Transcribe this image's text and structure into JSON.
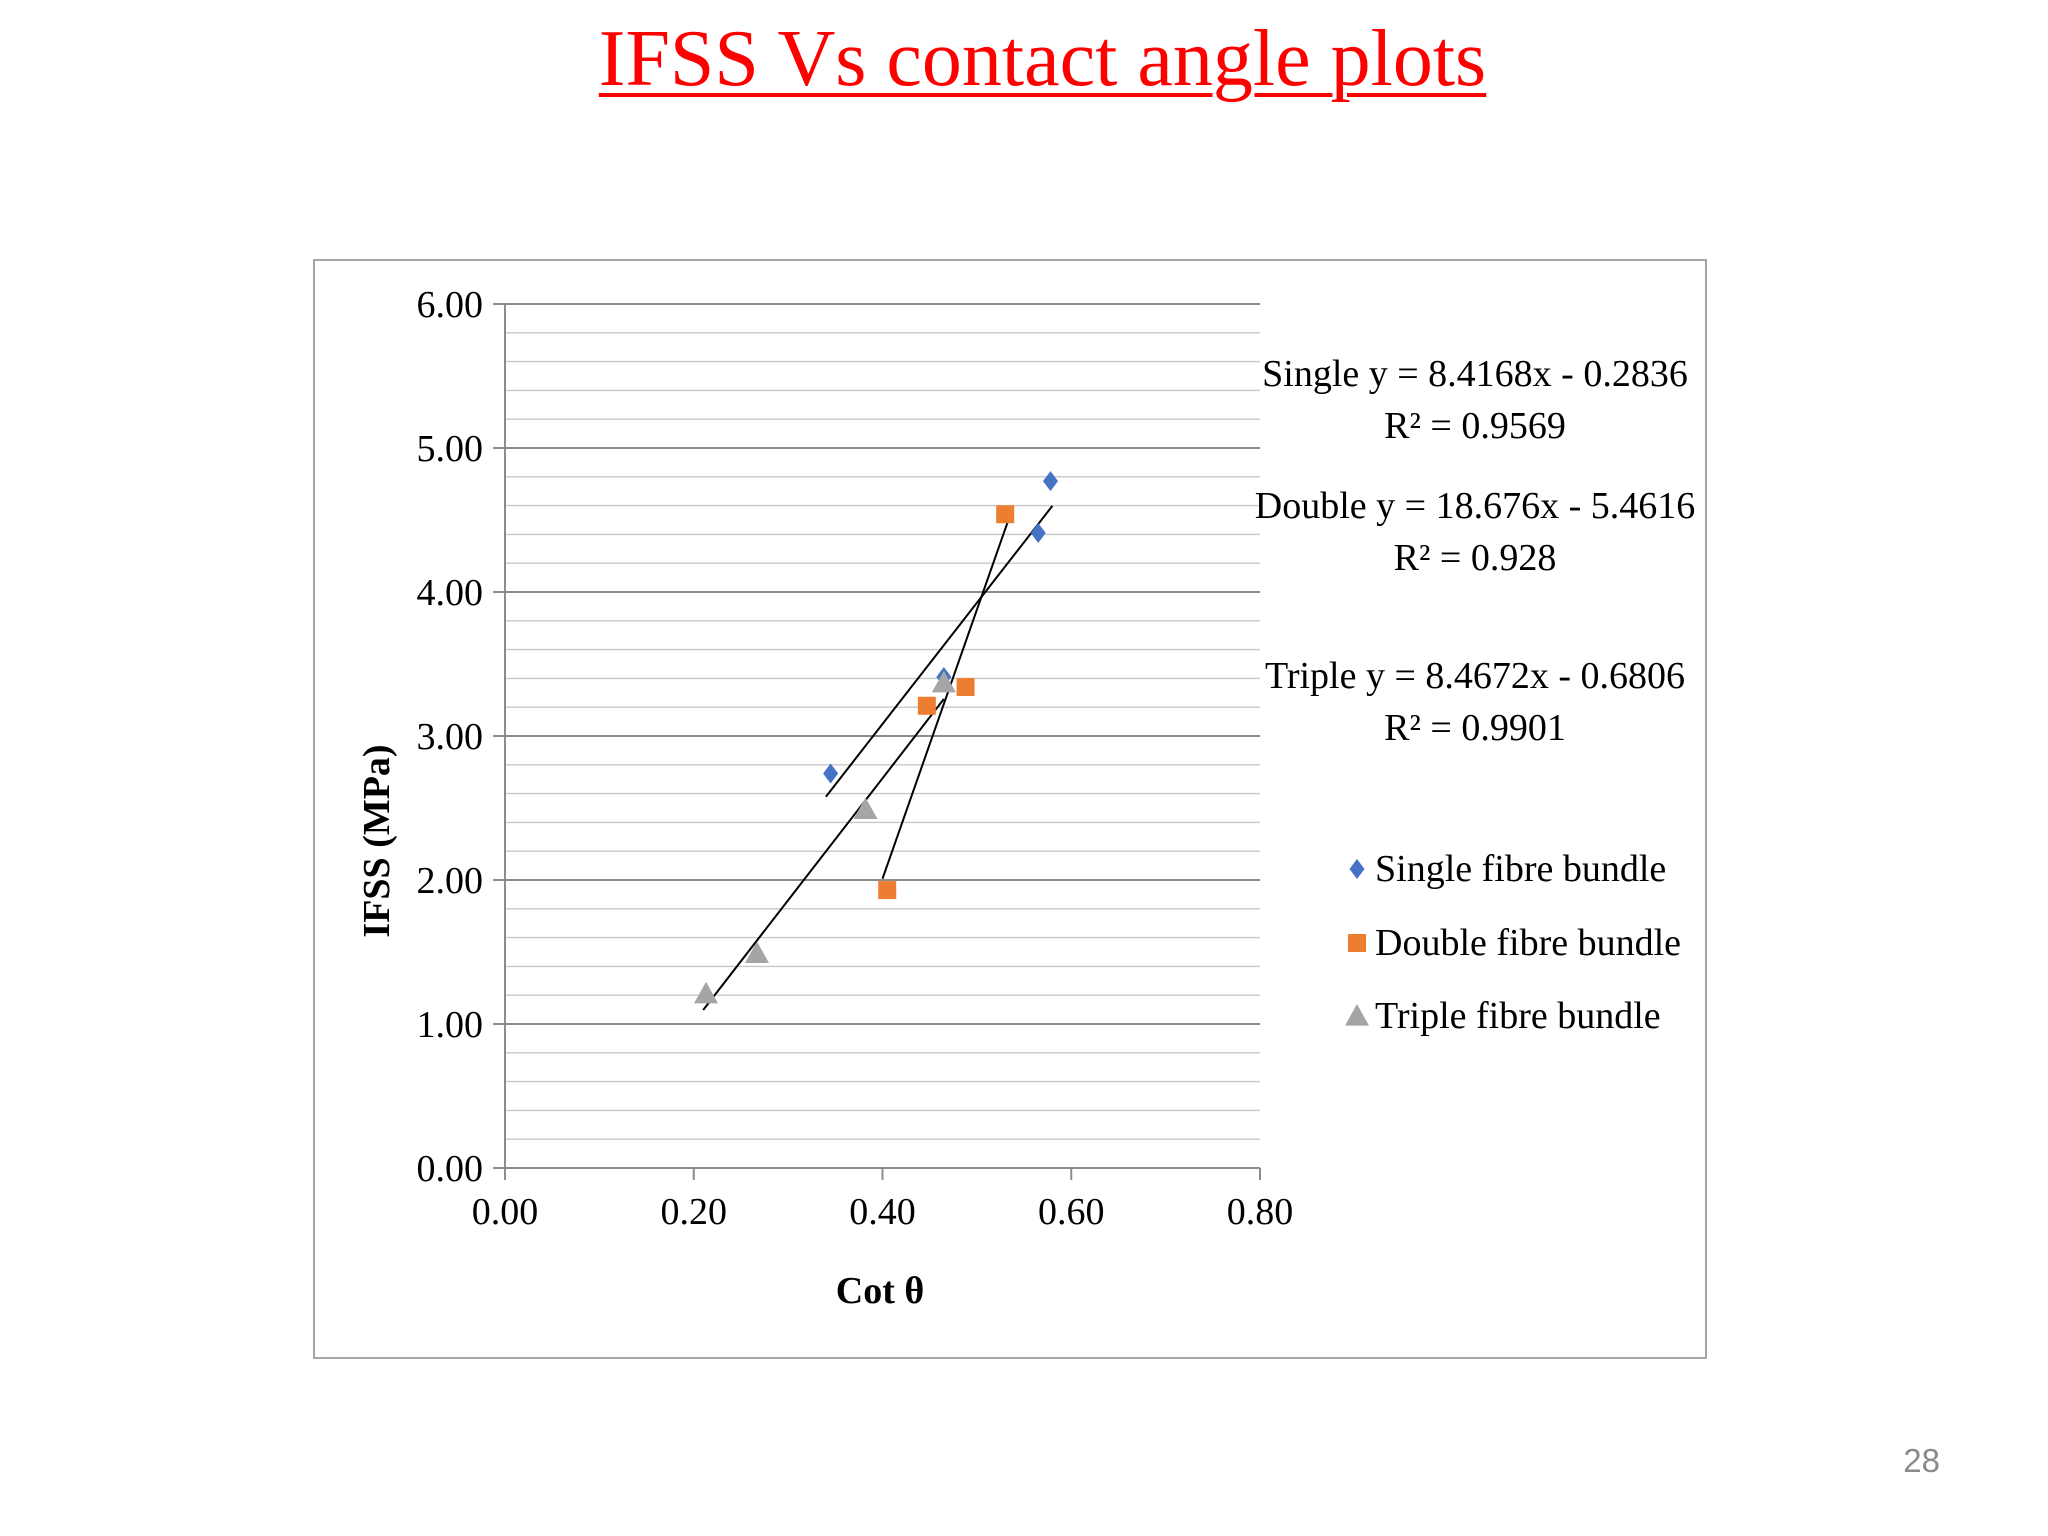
{
  "slide": {
    "title": "IFSS Vs contact angle plots",
    "page_number": "28"
  },
  "chart_data": {
    "type": "scatter",
    "title": "",
    "xlabel": "Cot θ",
    "ylabel": "IFSS (MPa)",
    "xlim": [
      0,
      0.8
    ],
    "ylim": [
      0,
      6
    ],
    "x_ticks": [
      "0.00",
      "0.20",
      "0.40",
      "0.60",
      "0.80"
    ],
    "y_ticks": [
      "0.00",
      "1.00",
      "2.00",
      "3.00",
      "4.00",
      "5.00",
      "6.00"
    ],
    "minor_gridline_step": 0.2,
    "grid": true,
    "legend_position": "right",
    "series": [
      {
        "name": "Single fibre bundle",
        "marker": "diamond",
        "color": "#4472c4",
        "points": [
          {
            "x": 0.345,
            "y": 2.74
          },
          {
            "x": 0.465,
            "y": 3.41
          },
          {
            "x": 0.565,
            "y": 4.41
          },
          {
            "x": 0.578,
            "y": 4.77
          }
        ],
        "trendline": {
          "slope": 8.4168,
          "intercept": -0.2836,
          "x_range": [
            0.34,
            0.58
          ]
        },
        "equation_label": "Single  y = 8.4168x - 0.2836",
        "r2_label": "R² = 0.9569"
      },
      {
        "name": "Double fibre bundle",
        "marker": "square",
        "color": "#ed7d31",
        "points": [
          {
            "x": 0.405,
            "y": 1.93
          },
          {
            "x": 0.447,
            "y": 3.21
          },
          {
            "x": 0.488,
            "y": 3.34
          },
          {
            "x": 0.53,
            "y": 4.54
          }
        ],
        "trendline": {
          "slope": 18.676,
          "intercept": -5.4616,
          "x_range": [
            0.4,
            0.535
          ]
        },
        "equation_label": "Double  y = 18.676x - 5.4616",
        "r2_label": "R² = 0.928"
      },
      {
        "name": "Triple fibre bundle",
        "marker": "triangle",
        "color": "#a5a5a5",
        "points": [
          {
            "x": 0.213,
            "y": 1.21
          },
          {
            "x": 0.267,
            "y": 1.49
          },
          {
            "x": 0.382,
            "y": 2.49
          },
          {
            "x": 0.465,
            "y": 3.37
          }
        ],
        "trendline": {
          "slope": 8.4672,
          "intercept": -0.6806,
          "x_range": [
            0.21,
            0.465
          ]
        },
        "equation_label": "Triple  y = 8.4672x - 0.6806",
        "r2_label": "R² = 0.9901"
      }
    ]
  }
}
